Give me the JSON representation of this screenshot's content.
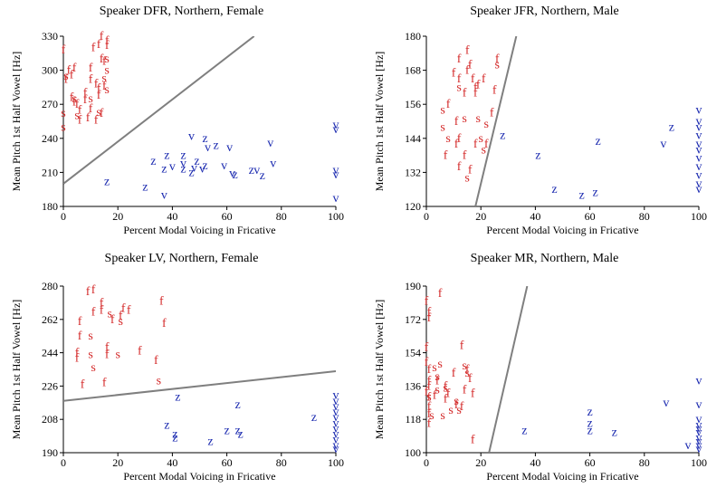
{
  "chart_data": [
    {
      "type": "scatter",
      "title": "Speaker DFR, Northern, Female",
      "xlabel": "Percent Modal Voicing in Fricative",
      "ylabel": "Mean Pitch 1st Half Vowel [Hz]",
      "xlim": [
        0,
        100
      ],
      "ylim": [
        180,
        330
      ],
      "xticks": [
        0,
        20,
        40,
        60,
        80,
        100
      ],
      "yticks": [
        180,
        210,
        240,
        270,
        300,
        330
      ],
      "grid": false,
      "line": {
        "x": [
          0,
          70
        ],
        "y": [
          200,
          330
        ],
        "color": "#7f7f7f"
      },
      "series": [
        {
          "marker": "f",
          "color": "#d42a2a",
          "points": [
            [
              0,
              318
            ],
            [
              2,
              300
            ],
            [
              3,
              296
            ],
            [
              4,
              302
            ],
            [
              3,
              276
            ],
            [
              4,
              272
            ],
            [
              5,
              270
            ],
            [
              8,
              280
            ],
            [
              8,
              274
            ],
            [
              10,
              302
            ],
            [
              10,
              292
            ],
            [
              11,
              320
            ],
            [
              13,
              284
            ],
            [
              13,
              278
            ],
            [
              12,
              256
            ],
            [
              13,
              323
            ],
            [
              14,
              310
            ],
            [
              14,
              330
            ],
            [
              15,
              286
            ],
            [
              15,
              308
            ],
            [
              16,
              322
            ],
            [
              16,
              326
            ],
            [
              14,
              262
            ],
            [
              1,
              292
            ],
            [
              6,
              256
            ],
            [
              9,
              258
            ],
            [
              12,
              288
            ],
            [
              10,
              266
            ],
            [
              6,
              265
            ]
          ]
        },
        {
          "marker": "s",
          "color": "#d42a2a",
          "points": [
            [
              0,
              262
            ],
            [
              0,
              250
            ],
            [
              1,
              295
            ],
            [
              4,
              275
            ],
            [
              5,
              260
            ],
            [
              10,
              275
            ],
            [
              13,
              263
            ],
            [
              15,
              293
            ],
            [
              16,
              300
            ],
            [
              16,
              310
            ],
            [
              16,
              283
            ]
          ]
        },
        {
          "marker": "z",
          "color": "#1c2bb0",
          "points": [
            [
              16,
              202
            ],
            [
              30,
              197
            ],
            [
              33,
              220
            ],
            [
              38,
              225
            ],
            [
              44,
              225
            ],
            [
              47,
              210
            ],
            [
              49,
              220
            ],
            [
              52,
              216
            ],
            [
              56,
              234
            ],
            [
              63,
              208
            ],
            [
              69,
              212
            ],
            [
              73,
              207
            ],
            [
              52,
              240
            ],
            [
              37,
              213
            ],
            [
              44,
              213
            ]
          ]
        },
        {
          "marker": "v",
          "color": "#1c2bb0",
          "points": [
            [
              37,
              190
            ],
            [
              40,
              215
            ],
            [
              44,
              218
            ],
            [
              48,
              214
            ],
            [
              51,
              213
            ],
            [
              53,
              232
            ],
            [
              59,
              216
            ],
            [
              61,
              232
            ],
            [
              62,
              209
            ],
            [
              76,
              236
            ],
            [
              71,
              212
            ],
            [
              77,
              218
            ],
            [
              47,
              242
            ],
            [
              100,
              252
            ],
            [
              100,
              248
            ],
            [
              100,
              212
            ],
            [
              100,
              208
            ],
            [
              100,
              187
            ]
          ]
        }
      ]
    },
    {
      "type": "scatter",
      "title": "Speaker JFR, Northern, Male",
      "xlabel": "Percent Modal Voicing in Fricative",
      "ylabel": "Mean Pitch 1st Half Vowel [Hz]",
      "xlim": [
        0,
        100
      ],
      "ylim": [
        120,
        180
      ],
      "xticks": [
        0,
        20,
        40,
        60,
        80,
        100
      ],
      "yticks": [
        120,
        132,
        144,
        156,
        168,
        180
      ],
      "grid": false,
      "line": {
        "x": [
          18,
          33
        ],
        "y": [
          120,
          180
        ],
        "color": "#7f7f7f"
      },
      "series": [
        {
          "marker": "f",
          "color": "#d42a2a",
          "points": [
            [
              10,
              167
            ],
            [
              12,
              172
            ],
            [
              12,
              165
            ],
            [
              15,
              168
            ],
            [
              15,
              175
            ],
            [
              16,
              170
            ],
            [
              17,
              165
            ],
            [
              18,
              162
            ],
            [
              18,
              160
            ],
            [
              14,
              160
            ],
            [
              11,
              150
            ],
            [
              12,
              144
            ],
            [
              11,
              142
            ],
            [
              12,
              134
            ],
            [
              14,
              138
            ],
            [
              16,
              133
            ],
            [
              18,
              142
            ],
            [
              22,
              142
            ],
            [
              25,
              161
            ],
            [
              24,
              153
            ],
            [
              26,
              172
            ],
            [
              21,
              165
            ],
            [
              19,
              163
            ],
            [
              7,
              138
            ],
            [
              8,
              156
            ]
          ]
        },
        {
          "marker": "s",
          "color": "#d42a2a",
          "points": [
            [
              6,
              154
            ],
            [
              6,
              148
            ],
            [
              8,
              144
            ],
            [
              12,
              162
            ],
            [
              14,
              151
            ],
            [
              19,
              151
            ],
            [
              20,
              144
            ],
            [
              21,
              140
            ],
            [
              22,
              149
            ],
            [
              26,
              170
            ],
            [
              15,
              130
            ]
          ]
        },
        {
          "marker": "z",
          "color": "#1c2bb0",
          "points": [
            [
              28,
              145
            ],
            [
              41,
              138
            ],
            [
              47,
              126
            ],
            [
              57,
              124
            ],
            [
              62,
              125
            ],
            [
              63,
              143
            ],
            [
              90,
              148
            ]
          ]
        },
        {
          "marker": "v",
          "color": "#1c2bb0",
          "points": [
            [
              87,
              142
            ],
            [
              100,
              154
            ],
            [
              100,
              150
            ],
            [
              100,
              148
            ],
            [
              100,
              145
            ],
            [
              100,
              142
            ],
            [
              100,
              140
            ],
            [
              100,
              137
            ],
            [
              100,
              134
            ],
            [
              100,
              131
            ],
            [
              100,
              128
            ],
            [
              100,
              126
            ]
          ]
        }
      ]
    },
    {
      "type": "scatter",
      "title": "Speaker LV, Northern, Female",
      "xlabel": "Percent Modal Voicing in Fricative",
      "ylabel": "Mean Pitch 1st Half Vowel [Hz]",
      "xlim": [
        0,
        100
      ],
      "ylim": [
        190,
        280
      ],
      "xticks": [
        0,
        20,
        40,
        60,
        80,
        100
      ],
      "yticks": [
        190,
        208,
        226,
        244,
        262,
        280
      ],
      "grid": false,
      "line": {
        "x": [
          0,
          100
        ],
        "y": [
          218,
          234
        ],
        "color": "#7f7f7f"
      },
      "series": [
        {
          "marker": "f",
          "color": "#d42a2a",
          "points": [
            [
              6,
              261
            ],
            [
              6,
              253
            ],
            [
              5,
              244
            ],
            [
              7,
              227
            ],
            [
              9,
              277
            ],
            [
              11,
              278
            ],
            [
              11,
              266
            ],
            [
              14,
              271
            ],
            [
              14,
              267
            ],
            [
              16,
              243
            ],
            [
              16,
              247
            ],
            [
              18,
              262
            ],
            [
              21,
              264
            ],
            [
              22,
              268
            ],
            [
              24,
              267
            ],
            [
              28,
              245
            ],
            [
              34,
              240
            ],
            [
              36,
              272
            ],
            [
              37,
              260
            ],
            [
              15,
              228
            ],
            [
              5,
              241
            ]
          ]
        },
        {
          "marker": "s",
          "color": "#d42a2a",
          "points": [
            [
              10,
              253
            ],
            [
              10,
              243
            ],
            [
              11,
              236
            ],
            [
              17,
              265
            ],
            [
              20,
              243
            ],
            [
              21,
              261
            ],
            [
              35,
              229
            ]
          ]
        },
        {
          "marker": "z",
          "color": "#1c2bb0",
          "points": [
            [
              38,
              205
            ],
            [
              41,
              200
            ],
            [
              41,
              198
            ],
            [
              54,
              196
            ],
            [
              60,
              202
            ],
            [
              64,
              216
            ],
            [
              64,
              202
            ],
            [
              65,
              200
            ],
            [
              92,
              209
            ],
            [
              42,
              220
            ]
          ]
        },
        {
          "marker": "v",
          "color": "#1c2bb0",
          "points": [
            [
              100,
              221
            ],
            [
              100,
              218
            ],
            [
              100,
              215
            ],
            [
              100,
              212
            ],
            [
              100,
              209
            ],
            [
              100,
              206
            ],
            [
              100,
              203
            ],
            [
              100,
              200
            ],
            [
              100,
              197
            ],
            [
              100,
              194
            ],
            [
              100,
              192
            ]
          ]
        }
      ]
    },
    {
      "type": "scatter",
      "title": "Speaker MR, Northern, Male",
      "xlabel": "Percent Modal Voicing in Fricative",
      "ylabel": "Mean Pitch 1st Half Vowel [Hz]",
      "xlim": [
        0,
        100
      ],
      "ylim": [
        100,
        190
      ],
      "xticks": [
        0,
        20,
        40,
        60,
        80,
        100
      ],
      "yticks": [
        100,
        118,
        136,
        154,
        172,
        190
      ],
      "grid": false,
      "line": {
        "x": [
          23,
          37
        ],
        "y": [
          100,
          190
        ],
        "color": "#7f7f7f"
      },
      "series": [
        {
          "marker": "f",
          "color": "#d42a2a",
          "points": [
            [
              0,
              182
            ],
            [
              1,
              176
            ],
            [
              1,
              173
            ],
            [
              0,
              157
            ],
            [
              0,
              149
            ],
            [
              1,
              145
            ],
            [
              1,
              139
            ],
            [
              1,
              136
            ],
            [
              0,
              133
            ],
            [
              1,
              130
            ],
            [
              1,
              125
            ],
            [
              1,
              121
            ],
            [
              1,
              116
            ],
            [
              3,
              131
            ],
            [
              4,
              139
            ],
            [
              5,
              186
            ],
            [
              7,
              136
            ],
            [
              7,
              129
            ],
            [
              8,
              132
            ],
            [
              10,
              143
            ],
            [
              11,
              126
            ],
            [
              13,
              158
            ],
            [
              14,
              134
            ],
            [
              15,
              145
            ],
            [
              17,
              132
            ],
            [
              17,
              107
            ],
            [
              13,
              125
            ],
            [
              16,
              140
            ]
          ]
        },
        {
          "marker": "s",
          "color": "#d42a2a",
          "points": [
            [
              1,
              130
            ],
            [
              3,
              146
            ],
            [
              4,
              141
            ],
            [
              4,
              134
            ],
            [
              5,
              148
            ],
            [
              6,
              120
            ],
            [
              7,
              135
            ],
            [
              9,
              123
            ],
            [
              11,
              128
            ],
            [
              12,
              123
            ],
            [
              14,
              147
            ],
            [
              15,
              143
            ],
            [
              2,
              120
            ]
          ]
        },
        {
          "marker": "z",
          "color": "#1c2bb0",
          "points": [
            [
              36,
              112
            ],
            [
              60,
              112
            ],
            [
              60,
              122
            ],
            [
              60,
              116
            ],
            [
              69,
              111
            ]
          ]
        },
        {
          "marker": "v",
          "color": "#1c2bb0",
          "points": [
            [
              88,
              127
            ],
            [
              96,
              104
            ],
            [
              100,
              139
            ],
            [
              100,
              126
            ],
            [
              100,
              118
            ],
            [
              100,
              115
            ],
            [
              100,
              113
            ],
            [
              100,
              111
            ],
            [
              100,
              108
            ],
            [
              100,
              106
            ],
            [
              100,
              104
            ],
            [
              100,
              102
            ]
          ]
        }
      ]
    }
  ]
}
